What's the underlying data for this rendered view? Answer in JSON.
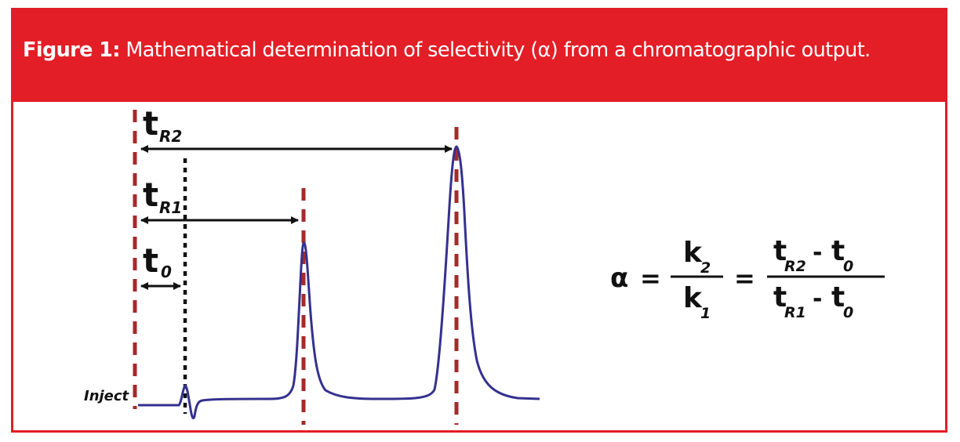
{
  "caption": {
    "label": "Figure 1:",
    "text": "Mathematical determination of selectivity (α) from a chromatographic output."
  },
  "diagram": {
    "inject_label": "Inject",
    "t_symbol": "t",
    "t0_sub": "0",
    "tR1_sub": "R1",
    "tR2_sub": "R2"
  },
  "equation": {
    "alpha": "α",
    "equals": "=",
    "k": "k",
    "k2_sub": "2",
    "k1_sub": "1",
    "minus": "-"
  },
  "colors": {
    "accent_red": "#e31e26",
    "marker_dark_red": "#a52a2a",
    "trace_blue": "#34318f",
    "black": "#111111"
  }
}
